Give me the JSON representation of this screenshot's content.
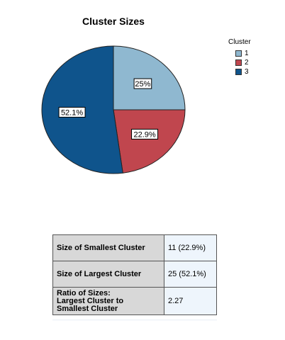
{
  "chart_data": {
    "type": "pie",
    "title": "Cluster Sizes",
    "legend": {
      "title": "Cluster",
      "placement": "top-right"
    },
    "slices": [
      {
        "name": "1",
        "value": 25.0,
        "label": "25%",
        "color": "#8fb8d0"
      },
      {
        "name": "2",
        "value": 22.9,
        "label": "22.9%",
        "color": "#c0464e"
      },
      {
        "name": "3",
        "value": 52.1,
        "label": "52.1%",
        "color": "#0f548c"
      }
    ]
  },
  "table": {
    "rows": [
      {
        "label": "Size of Smallest Cluster",
        "value": "11 (22.9%)"
      },
      {
        "label": "Size of Largest Cluster",
        "value": "25 (52.1%)"
      },
      {
        "label": "Ratio of Sizes:\nLargest Cluster to\nSmallest Cluster",
        "value": "2.27"
      }
    ]
  }
}
